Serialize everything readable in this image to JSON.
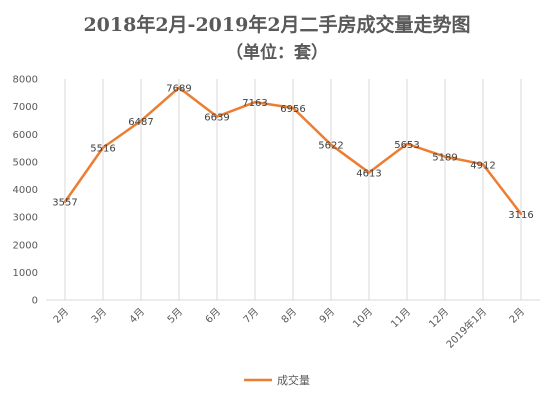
{
  "chart_data": {
    "type": "line",
    "title": "2018年2月-2019年2月二手房成交量走势图",
    "subtitle": "（单位：套）",
    "xlabel": "",
    "ylabel": "",
    "categories": [
      "2月",
      "3月",
      "4月",
      "5月",
      "6月",
      "7月",
      "8月",
      "9月",
      "10月",
      "11月",
      "12月",
      "2019年1月",
      "2月"
    ],
    "series": [
      {
        "name": "成交量",
        "values": [
          3557,
          5516,
          6487,
          7689,
          6639,
          7163,
          6956,
          5622,
          4613,
          5653,
          5189,
          4912,
          3116
        ]
      }
    ],
    "ylim": [
      0,
      8000
    ],
    "yticks": [
      0,
      1000,
      2000,
      3000,
      4000,
      5000,
      6000,
      7000,
      8000
    ],
    "grid": "vertical",
    "legend_position": "bottom",
    "colors": {
      "line": "#ED7D31",
      "grid": "#D9D9D9",
      "text": "#595959"
    }
  }
}
